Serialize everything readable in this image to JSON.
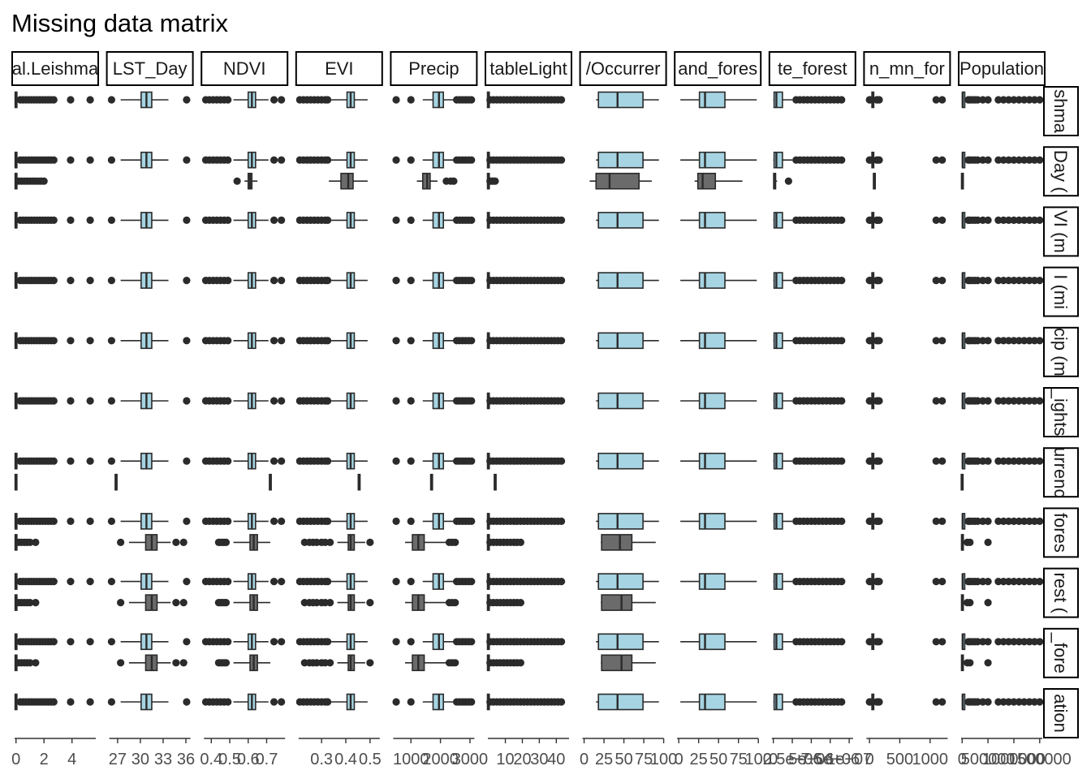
{
  "title": "Missing data matrix",
  "chart_data": {
    "type": "boxplot-matrix",
    "title": "Missing data matrix",
    "colors": {
      "not_missing": "#A6D4E2",
      "missing": "#6B6B6B",
      "outline": "#2b2b2b"
    },
    "column_strips": [
      "al.Leishma",
      "LST_Day",
      "NDVI",
      "EVI",
      "Precip",
      "tableLight",
      "/Occurrer",
      "and_fores",
      "te_forest",
      "n_mn_for",
      "Population"
    ],
    "row_strips": [
      "shma",
      "Day (",
      "VI (m",
      "I (mi",
      "cip (m",
      "_ights",
      "urrenc",
      "fores",
      "rest (",
      "_fore",
      "ation"
    ],
    "columns": [
      {
        "name": "al.Leishma",
        "ticks": [
          0,
          2,
          4
        ],
        "tick_labels": [
          "0",
          "2",
          "4"
        ],
        "xlim": [
          -0.1,
          5.7
        ],
        "box": [
          0,
          0,
          0,
          0,
          0.1
        ],
        "outliers": [
          0.3,
          0.5,
          0.7,
          0.9,
          1.1,
          1.3,
          1.5,
          1.7,
          1.9,
          2.1,
          2.3,
          2.5,
          2.7,
          3.9,
          5.3
        ]
      },
      {
        "name": "LST_Day",
        "ticks": [
          27,
          30,
          33,
          36
        ],
        "tick_labels": [
          "27",
          "30",
          "33",
          "36"
        ],
        "xlim": [
          25.9,
          36.6
        ],
        "box": [
          27.4,
          30.1,
          30.8,
          31.5,
          33.7
        ],
        "outliers": [
          26.2,
          36.1
        ]
      },
      {
        "name": "NDVI",
        "ticks": [
          0.4,
          0.5,
          0.6,
          0.7
        ],
        "tick_labels": [
          "0.4",
          "0.5",
          "0.6",
          "0.7"
        ],
        "xlim": [
          0.36,
          0.8
        ],
        "box": [
          0.52,
          0.6,
          0.62,
          0.64,
          0.71
        ],
        "outliers": [
          0.37,
          0.39,
          0.41,
          0.43,
          0.45,
          0.47,
          0.49,
          0.74,
          0.78
        ]
      },
      {
        "name": "EVI",
        "ticks": [
          0.3,
          0.4,
          0.5
        ],
        "tick_labels": [
          "0.3",
          "0.4",
          "0.5"
        ],
        "xlim": [
          0.205,
          0.54
        ],
        "box": [
          0.34,
          0.405,
          0.42,
          0.435,
          0.49
        ],
        "outliers": [
          0.21,
          0.225,
          0.24,
          0.255,
          0.27,
          0.285,
          0.3,
          0.315,
          0.325
        ]
      },
      {
        "name": "Precip",
        "ticks": [
          1000,
          2000,
          3000
        ],
        "tick_labels": [
          "1000",
          "2000",
          "3000"
        ],
        "xlim": [
          400,
          3150
        ],
        "box": [
          1400,
          1750,
          1950,
          2100,
          2500
        ],
        "outliers": [
          500,
          1000,
          2550,
          2650,
          2750,
          2850,
          2950,
          3050
        ]
      },
      {
        "name": "tableLight",
        "ticks": [
          10,
          20,
          30,
          40
        ],
        "tick_labels": [
          "10",
          "20",
          "30",
          "40"
        ],
        "xlim": [
          -0.3,
          47.5
        ],
        "box": [
          0,
          0,
          0,
          0,
          0.3
        ],
        "outliers": [
          1,
          3,
          5,
          7,
          9,
          11,
          13,
          15,
          17,
          19,
          21,
          23,
          25,
          27,
          29,
          31,
          33,
          35,
          37,
          39,
          41,
          43
        ]
      },
      {
        "name": "/Occurrer",
        "ticks": [
          0,
          25,
          50,
          75,
          100
        ],
        "tick_labels": [
          "0",
          "25",
          "50",
          "75",
          "100"
        ],
        "xlim": [
          -2,
          100
        ],
        "box": [
          15,
          18,
          42,
          74,
          94
        ],
        "outliers": []
      },
      {
        "name": "and_fores",
        "ticks": [
          0,
          25,
          50,
          75,
          100
        ],
        "tick_labels": [
          "0",
          "25",
          "50",
          "75",
          "100"
        ],
        "xlim": [
          -2,
          100
        ],
        "box": [
          2,
          26,
          33,
          58,
          98
        ],
        "outliers": []
      },
      {
        "name": "te_forest",
        "ticks": [
          0,
          2500000,
          5000000,
          7500000,
          10000000
        ],
        "tick_labels": [
          "0",
          "2.5e+06",
          "5e+06",
          "7.5e+06",
          "1e+07"
        ],
        "xlim": [
          -200000,
          10500000
        ],
        "box": [
          0,
          100000,
          400000,
          1200000,
          2500000
        ],
        "outliers": [
          3000000,
          3500000,
          4000000,
          4500000,
          5000000,
          5500000,
          6000000,
          6500000,
          7000000,
          7500000,
          8000000,
          8500000,
          9000000
        ]
      },
      {
        "name": "n_mn_for",
        "ticks": [
          0,
          500,
          1000
        ],
        "tick_labels": [
          "0",
          "500",
          "1000"
        ],
        "xlim": [
          -50,
          1290
        ],
        "box": [
          20,
          40,
          55,
          70,
          100
        ],
        "outliers": [
          0,
          10,
          120,
          140,
          160,
          1100,
          1200
        ]
      },
      {
        "name": "Population",
        "ticks": [
          0,
          500000,
          1000000,
          1500000
        ],
        "tick_labels": [
          "0",
          "500000",
          "1000000",
          "1500000"
        ],
        "xlim": [
          -20000,
          1550000
        ],
        "box": [
          0,
          5000,
          10000,
          50000,
          100000
        ],
        "outliers": [
          120000,
          150000,
          200000,
          250000,
          300000,
          400000,
          500000,
          700000,
          800000,
          900000,
          1000000,
          1100000,
          1200000,
          1300000,
          1400000,
          1500000
        ]
      }
    ],
    "rows": [
      {
        "name": "shma",
        "missing": null
      },
      {
        "name": "Day (",
        "missing": [
          {
            "box": [
              0,
              0,
              0,
              0,
              0.1
            ],
            "outliers": [
              0.2,
              0.4,
              0.6,
              0.8,
              1.0,
              1.2,
              1.4,
              1.6,
              1.8,
              2.0
            ]
          },
          null,
          {
            "box": [
              0.58,
              0.6,
              0.61,
              0.62,
              0.65
            ],
            "outliers": [
              0.54
            ]
          },
          {
            "box": [
              0.33,
              0.38,
              0.41,
              0.43,
              0.49
            ],
            "outliers": []
          },
          {
            "box": [
              1200,
              1400,
              1550,
              1650,
              1900
            ],
            "outliers": [
              2200,
              2350,
              2450
            ]
          },
          {
            "box": [
              0,
              0,
              0,
              0,
              0.3
            ],
            "outliers": [
              1,
              2,
              3,
              4
            ]
          },
          {
            "box": [
              7,
              15,
              32,
              69,
              85
            ],
            "outliers": []
          },
          {
            "box": [
              20,
              24,
              30,
              46,
              80
            ],
            "outliers": []
          },
          {
            "box": [
              0,
              50000,
              100000,
              300000,
              500000
            ],
            "outliers": [
              2000000
            ]
          },
          {
            "box": [
              60,
              70,
              80,
              90,
              100
            ],
            "outliers": []
          },
          {
            "box": [
              0,
              2000,
              5000,
              10000,
              30000
            ],
            "outliers": []
          }
        ]
      },
      {
        "name": "VI (m",
        "missing": null
      },
      {
        "name": "I (mi",
        "missing": null
      },
      {
        "name": "cip (m",
        "missing": null
      },
      {
        "name": "_ights",
        "missing": null
      },
      {
        "name": "urrenc",
        "missing": [
          {
            "box": [
              0,
              0,
              0,
              0,
              0
            ]
          },
          {
            "box": [
              26.8,
              26.8,
              26.8,
              26.8,
              26.8
            ]
          },
          {
            "box": [
              0.72,
              0.72,
              0.72,
              0.72,
              0.72
            ]
          },
          {
            "box": [
              0.455,
              0.455,
              0.455,
              0.455,
              0.455
            ]
          },
          {
            "box": [
              1700,
              1700,
              1700,
              1700,
              1700
            ]
          },
          {
            "box": [
              4,
              4,
              4,
              4,
              4
            ]
          },
          null,
          null,
          null,
          null,
          {
            "box": [
              0,
              0,
              0,
              0,
              0
            ]
          }
        ]
      },
      {
        "name": "fores",
        "missing": [
          {
            "box": [
              0,
              0,
              0,
              0,
              0.1
            ],
            "outliers": [
              0.2,
              0.4,
              0.6,
              0.8,
              1.0,
              1.4
            ]
          },
          {
            "box": [
              28.5,
              30.7,
              31.5,
              32.2,
              34.0
            ],
            "outliers": [
              27.4,
              34.7,
              35.7
            ]
          },
          {
            "box": [
              0.52,
              0.61,
              0.63,
              0.65,
              0.72
            ],
            "outliers": [
              0.44,
              0.45,
              0.46,
              0.47,
              0.48
            ]
          },
          {
            "box": [
              0.365,
              0.41,
              0.42,
              0.435,
              0.48
            ],
            "outliers": [
              0.23,
              0.25,
              0.265,
              0.28,
              0.3,
              0.315,
              0.335,
              0.5
            ]
          },
          {
            "box": [
              800,
              1050,
              1250,
              1450,
              2200
            ],
            "outliers": [
              2300,
              2400,
              2500
            ]
          },
          {
            "box": [
              0,
              0,
              0,
              0,
              0.3
            ],
            "outliers": [
              1,
              3,
              5,
              7,
              9,
              11,
              13,
              15,
              17,
              19
            ]
          },
          {
            "box": [
              21,
              22,
              45,
              60,
              90
            ],
            "outliers": []
          },
          null,
          null,
          null,
          {
            "box": [
              0,
              2000,
              5000,
              10000,
              40000
            ],
            "outliers": [
              100000,
              150000,
              500000
            ]
          }
        ]
      },
      {
        "name": "rest (",
        "missing": [
          {
            "box": [
              0,
              0,
              0,
              0,
              0.1
            ],
            "outliers": [
              0.2,
              0.4,
              0.6,
              0.8,
              1.0,
              1.4
            ]
          },
          {
            "box": [
              28.5,
              30.7,
              31.5,
              32.2,
              34.0
            ],
            "outliers": [
              27.4,
              34.7,
              35.7
            ]
          },
          {
            "box": [
              0.52,
              0.61,
              0.63,
              0.65,
              0.72
            ],
            "outliers": [
              0.44,
              0.45,
              0.46,
              0.47,
              0.48
            ]
          },
          {
            "box": [
              0.365,
              0.41,
              0.42,
              0.435,
              0.48
            ],
            "outliers": [
              0.23,
              0.25,
              0.265,
              0.28,
              0.3,
              0.315,
              0.335,
              0.5
            ]
          },
          {
            "box": [
              800,
              1050,
              1250,
              1450,
              2200
            ],
            "outliers": [
              2300,
              2400,
              2500
            ]
          },
          {
            "box": [
              0,
              0,
              0,
              0,
              0.3
            ],
            "outliers": [
              1,
              3,
              5,
              7,
              9,
              11,
              13,
              15,
              17,
              19
            ]
          },
          {
            "box": [
              21,
              22,
              47,
              60,
              90
            ],
            "outliers": []
          },
          null,
          null,
          null,
          {
            "box": [
              0,
              2000,
              5000,
              10000,
              40000
            ],
            "outliers": [
              100000,
              150000,
              500000
            ]
          }
        ]
      },
      {
        "name": "_fore",
        "missing": [
          {
            "box": [
              0,
              0,
              0,
              0,
              0.1
            ],
            "outliers": [
              0.2,
              0.4,
              0.6,
              0.8,
              1.0,
              1.4
            ]
          },
          {
            "box": [
              28.5,
              30.7,
              31.5,
              32.2,
              34.0
            ],
            "outliers": [
              27.4,
              34.7,
              35.7
            ]
          },
          {
            "box": [
              0.52,
              0.61,
              0.63,
              0.65,
              0.72
            ],
            "outliers": [
              0.44,
              0.45,
              0.46,
              0.47,
              0.48
            ]
          },
          {
            "box": [
              0.365,
              0.41,
              0.42,
              0.435,
              0.48
            ],
            "outliers": [
              0.23,
              0.25,
              0.265,
              0.28,
              0.3,
              0.315,
              0.335,
              0.5
            ]
          },
          {
            "box": [
              800,
              1050,
              1250,
              1450,
              2200
            ],
            "outliers": [
              2300,
              2400,
              2500
            ]
          },
          {
            "box": [
              0,
              0,
              0,
              0,
              0.3
            ],
            "outliers": [
              1,
              3,
              5,
              7,
              9,
              11,
              13,
              15,
              17,
              19
            ]
          },
          {
            "box": [
              21,
              22,
              47,
              60,
              90
            ],
            "outliers": []
          },
          null,
          null,
          null,
          {
            "box": [
              0,
              2000,
              5000,
              10000,
              40000
            ],
            "outliers": [
              100000,
              150000,
              500000
            ]
          }
        ]
      },
      {
        "name": "ation",
        "missing": null
      }
    ]
  }
}
